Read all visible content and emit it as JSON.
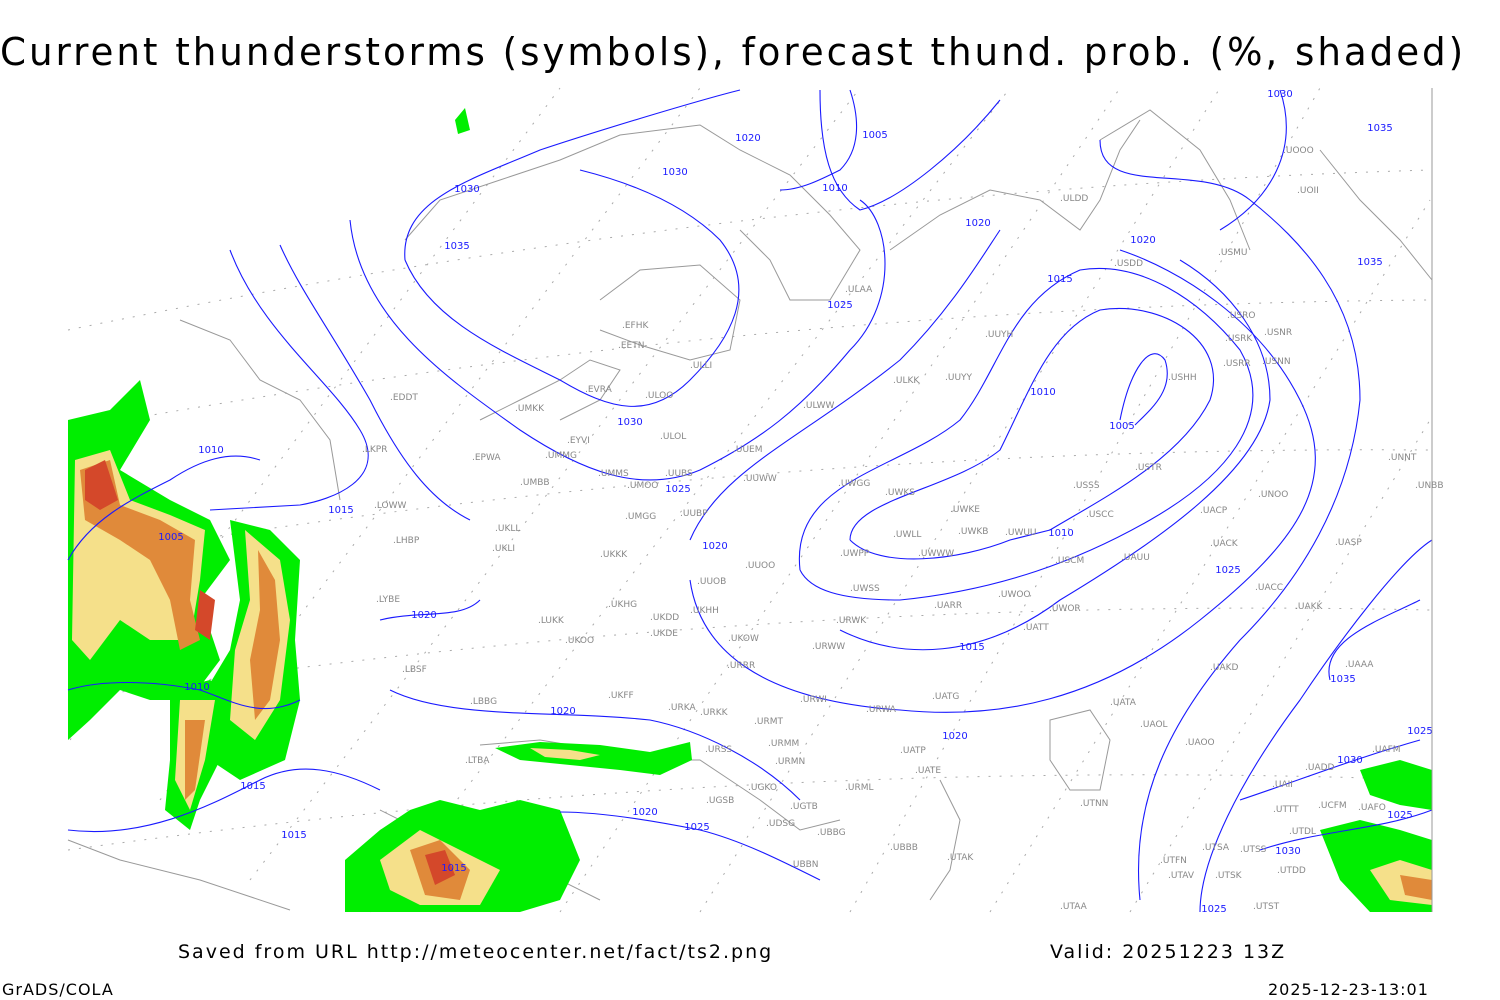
{
  "title": "Current thunderstorms (symbols), forecast thund. prob. (%, shaded)",
  "footer": {
    "source": "Saved from URL http://meteocenter.net/fact/ts2.png",
    "valid": "Valid: 20251223 13Z",
    "software": "GrADS/COLA",
    "generated": "2025-12-23-13:01"
  },
  "colors": {
    "isobar": "#1a1aff",
    "stations": "#888888",
    "prob_low": "#00ee00",
    "prob_mid": "#f5e08a",
    "prob_high": "#e08a3a",
    "prob_max": "#d4482a"
  },
  "stations": [
    "ULAA",
    "EFHK",
    "EETN",
    "EVRA",
    "ULOO",
    "ULLI",
    "UMKK",
    "EDDT",
    "ULOL",
    "EYVI",
    "UMMG",
    "EPWA",
    "LKPR",
    "UUEM",
    "ULWW",
    "ULKK",
    "UUYY",
    "UUYH",
    "ULDD",
    "USDD",
    "USMU",
    "USRO",
    "USRK",
    "USNR",
    "USRR",
    "USNN",
    "USHH",
    "UOOO",
    "UOII",
    "UMMS",
    "UMOO",
    "UUBS",
    "UMBB",
    "UUWW",
    "UWGG",
    "UWKS",
    "UWKE",
    "UWKB",
    "UWUU",
    "UWLL",
    "UWPP",
    "UWWW",
    "UWSS",
    "URWK",
    "URWW",
    "UARR",
    "UWOO",
    "UWOR",
    "UATT",
    "USSS",
    "USTR",
    "USCC",
    "USCM",
    "UAUU",
    "UACP",
    "UACK",
    "UNOO",
    "UNNT",
    "UNBB",
    "UASP",
    "UACC",
    "UAKK",
    "UAKD",
    "UAAA",
    "UATG",
    "UATA",
    "UAOL",
    "UAOO",
    "UADD",
    "UATP",
    "UATE",
    "URWI",
    "URWA",
    "UUOO",
    "UUOB",
    "UKKK",
    "UMGG",
    "UUBP",
    "UKLL",
    "UKLI",
    "LHBP",
    "LOWW",
    "LYBE",
    "LUKK",
    "UKOO",
    "UKHG",
    "UKDD",
    "UKHH",
    "UKDE",
    "UKOW",
    "URRR",
    "UKFF",
    "URKA",
    "URKK",
    "URMT",
    "URMM",
    "URSS",
    "URMN",
    "LBSF",
    "LBBG",
    "LTBA",
    "UGKO",
    "UGSB",
    "UGTB",
    "UDSG",
    "UBBG",
    "UBBN",
    "URML",
    "UBBB",
    "UTAK",
    "UTNN",
    "UAII",
    "UTTT",
    "UTDL",
    "UTSA",
    "UTSS",
    "UTFN",
    "UTSK",
    "UTAV",
    "UTDD",
    "UTAA",
    "UTST",
    "UAFM",
    "UAFO",
    "UCFM"
  ],
  "isobar_labels": [
    "1030",
    "1035",
    "1020",
    "1030",
    "1010",
    "1005",
    "1025",
    "1020",
    "1020",
    "1030",
    "1035",
    "1035",
    "1015",
    "1010",
    "1005",
    "1030",
    "1025",
    "1010",
    "1015",
    "1005",
    "1020",
    "1010",
    "1020",
    "1015",
    "1025",
    "1020",
    "1020",
    "1010",
    "1015",
    "1020",
    "1025",
    "1015",
    "1015",
    "1025",
    "1030",
    "1030",
    "1025",
    "1025",
    "1035"
  ]
}
